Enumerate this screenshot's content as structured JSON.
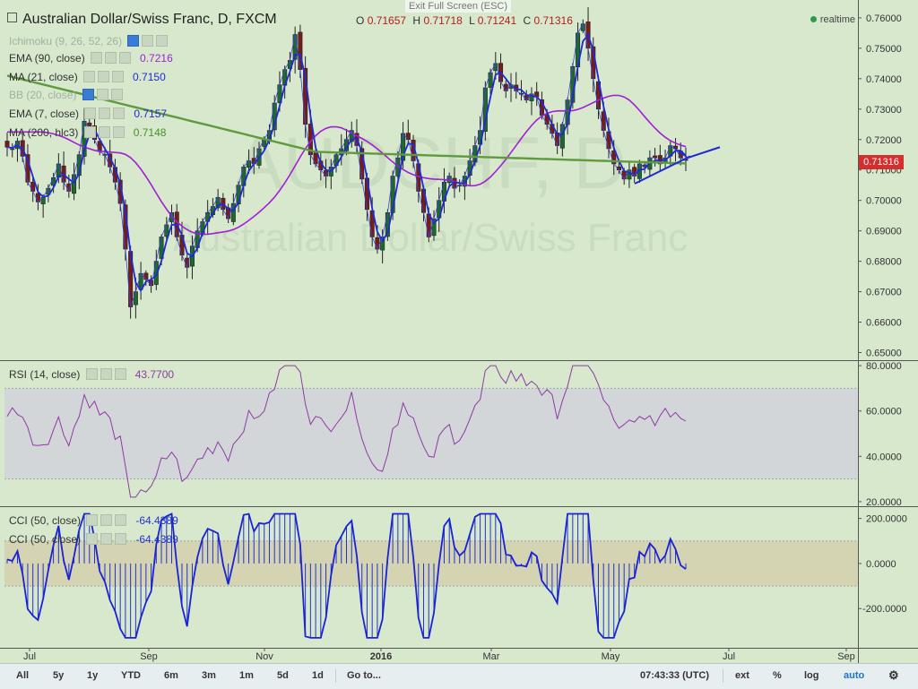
{
  "header": {
    "title": "Australian Dollar/Swiss Franc, D, FXCM",
    "ohlc": {
      "o_label": "O",
      "o": "0.71657",
      "h_label": "H",
      "h": "0.71718",
      "l_label": "L",
      "l": "0.71241",
      "c_label": "C",
      "c": "0.71316"
    },
    "exit_fullscreen": "Exit Full Screen (ESC)",
    "realtime": "realtime",
    "watermark": "AUDCHF, D",
    "watermark2": "Australian Dollar/Swiss Franc"
  },
  "indicators": [
    {
      "label": "Ichimoku (9, 26, 52, 26)",
      "value": ""
    },
    {
      "label": "EMA (90, close)",
      "value": "0.7216",
      "color": "#a21fd6"
    },
    {
      "label": "MA (21, close)",
      "value": "0.7150",
      "color": "#1f2ad6"
    },
    {
      "label": "BB (20, close)",
      "value": ""
    },
    {
      "label": "EMA (7, close)",
      "value": "0.7157",
      "color": "#1f2ad6"
    },
    {
      "label": "MA (200, hlc3)",
      "value": "0.7148",
      "color": "#4a8f2a"
    }
  ],
  "rsi": {
    "label": "RSI (14, close)",
    "value": "43.7700"
  },
  "cci": [
    {
      "label": "CCI (50, close)",
      "value": "-64.4389"
    },
    {
      "label": "CCI (50, close)",
      "value": "-64.4389"
    }
  ],
  "price_tag": "0.71316",
  "toolbar": {
    "ranges": [
      "All",
      "5y",
      "1y",
      "YTD",
      "6m",
      "3m",
      "1m",
      "5d",
      "1d"
    ],
    "goto": "Go to...",
    "time": "07:43:33 (UTC)",
    "ext": "ext",
    "pct": "%",
    "log": "log",
    "auto": "auto"
  },
  "chart_data": {
    "type": "candlestick",
    "price_axis": {
      "ticks": [
        "0.76000",
        "0.75000",
        "0.74000",
        "0.73000",
        "0.72000",
        "0.71000",
        "0.70000",
        "0.69000",
        "0.68000",
        "0.67000",
        "0.66000",
        "0.65000"
      ],
      "range": [
        0.6475,
        0.7635
      ]
    },
    "rsi_axis": {
      "ticks": [
        "80.0000",
        "60.0000",
        "40.0000",
        "20.0000"
      ],
      "range": [
        18,
        82
      ],
      "band": [
        30,
        70
      ]
    },
    "cci_axis": {
      "ticks": [
        "200.0000",
        "0.0000",
        "-200.0000"
      ],
      "range": [
        -370,
        250
      ],
      "band": [
        -100,
        100
      ]
    },
    "x_ticks": [
      "Jul",
      "Sep",
      "Nov",
      "2016",
      "Mar",
      "May",
      "Jul",
      "Sep"
    ],
    "close_series": [
      0.7175,
      0.717,
      0.7195,
      0.7145,
      0.706,
      0.703,
      0.6995,
      0.701,
      0.704,
      0.7075,
      0.712,
      0.706,
      0.703,
      0.7085,
      0.715,
      0.726,
      0.724,
      0.72,
      0.716,
      0.715,
      0.711,
      0.706,
      0.699,
      0.684,
      0.665,
      0.67,
      0.676,
      0.674,
      0.672,
      0.68,
      0.688,
      0.692,
      0.696,
      0.688,
      0.682,
      0.678,
      0.685,
      0.69,
      0.693,
      0.696,
      0.698,
      0.701,
      0.697,
      0.694,
      0.699,
      0.705,
      0.711,
      0.713,
      0.712,
      0.717,
      0.72,
      0.723,
      0.732,
      0.738,
      0.743,
      0.746,
      0.7545,
      0.743,
      0.725,
      0.715,
      0.712,
      0.71,
      0.708,
      0.711,
      0.715,
      0.717,
      0.72,
      0.723,
      0.718,
      0.707,
      0.697,
      0.688,
      0.684,
      0.688,
      0.696,
      0.708,
      0.714,
      0.722,
      0.72,
      0.713,
      0.703,
      0.696,
      0.688,
      0.694,
      0.7,
      0.706,
      0.708,
      0.704,
      0.705,
      0.708,
      0.713,
      0.718,
      0.723,
      0.737,
      0.742,
      0.745,
      0.739,
      0.736,
      0.738,
      0.736,
      0.735,
      0.733,
      0.735,
      0.734,
      0.728,
      0.725,
      0.722,
      0.718,
      0.725,
      0.733,
      0.744,
      0.755,
      0.758,
      0.75,
      0.74,
      0.73,
      0.723,
      0.717,
      0.712,
      0.71,
      0.707,
      0.71,
      0.708,
      0.712,
      0.711,
      0.714,
      0.714,
      0.712,
      0.714,
      0.718,
      0.717,
      0.714,
      0.7132
    ]
  }
}
